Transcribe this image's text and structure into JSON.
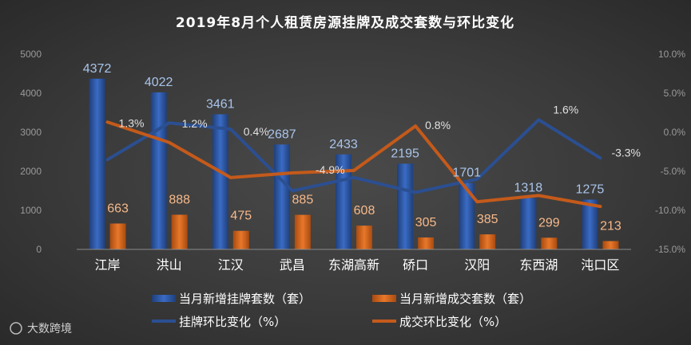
{
  "chart_data": {
    "type": "bar",
    "title": "2019年8月个人租赁房源挂牌及成交套数与环比变化",
    "categories": [
      "江岸",
      "洪山",
      "江汉",
      "武昌",
      "东湖高新",
      "硚口",
      "汉阳",
      "东西湖",
      "沌口区"
    ],
    "ylim": [
      0,
      5000
    ],
    "yticks": [
      "0",
      "1000",
      "2000",
      "3000",
      "4000",
      "5000"
    ],
    "y2lim": [
      -15,
      10
    ],
    "y2ticks": [
      "-15.0%",
      "-10.0%",
      "-5.0%",
      "0.0%",
      "5.0%",
      "10.0%"
    ],
    "series": [
      {
        "name": "当月新增挂牌套数（套）",
        "type": "bar",
        "color": "#2e5aa8",
        "values": [
          4372,
          4022,
          3461,
          2687,
          2433,
          2195,
          1701,
          1318,
          1275
        ],
        "labels": [
          "4372",
          "4022",
          "3461",
          "2687",
          "2433",
          "2195",
          "1701",
          "1318",
          "1275"
        ]
      },
      {
        "name": "当月新增成交套数（套）",
        "type": "bar",
        "color": "#d9661b",
        "values": [
          663,
          888,
          475,
          885,
          608,
          305,
          385,
          299,
          213
        ],
        "labels": [
          "663",
          "888",
          "475",
          "885",
          "608",
          "305",
          "385",
          "299",
          "213"
        ]
      },
      {
        "name": "挂牌环比变化（%）",
        "type": "line",
        "axis": "right",
        "color": "#2b4f91",
        "values": [
          -3.5,
          1.2,
          0.4,
          -7.5,
          -5.8,
          -7.7,
          -6.0,
          1.6,
          -3.3
        ],
        "labels": [
          "",
          "1.2%",
          "0.4%",
          "",
          "",
          "",
          "",
          "1.6%",
          "-3.3%"
        ]
      },
      {
        "name": "成交环比变化（%）",
        "type": "line",
        "axis": "right",
        "color": "#c45a1b",
        "values": [
          1.3,
          -1.3,
          -5.8,
          -5.2,
          -4.9,
          0.8,
          -8.9,
          -8.1,
          -9.5
        ],
        "labels": [
          "1.3%",
          "",
          "",
          "",
          "-4.9%",
          "0.8%",
          "",
          "",
          ""
        ]
      }
    ],
    "legend_position": "bottom",
    "grid": false
  },
  "logo": {
    "text": "大数跨境"
  }
}
